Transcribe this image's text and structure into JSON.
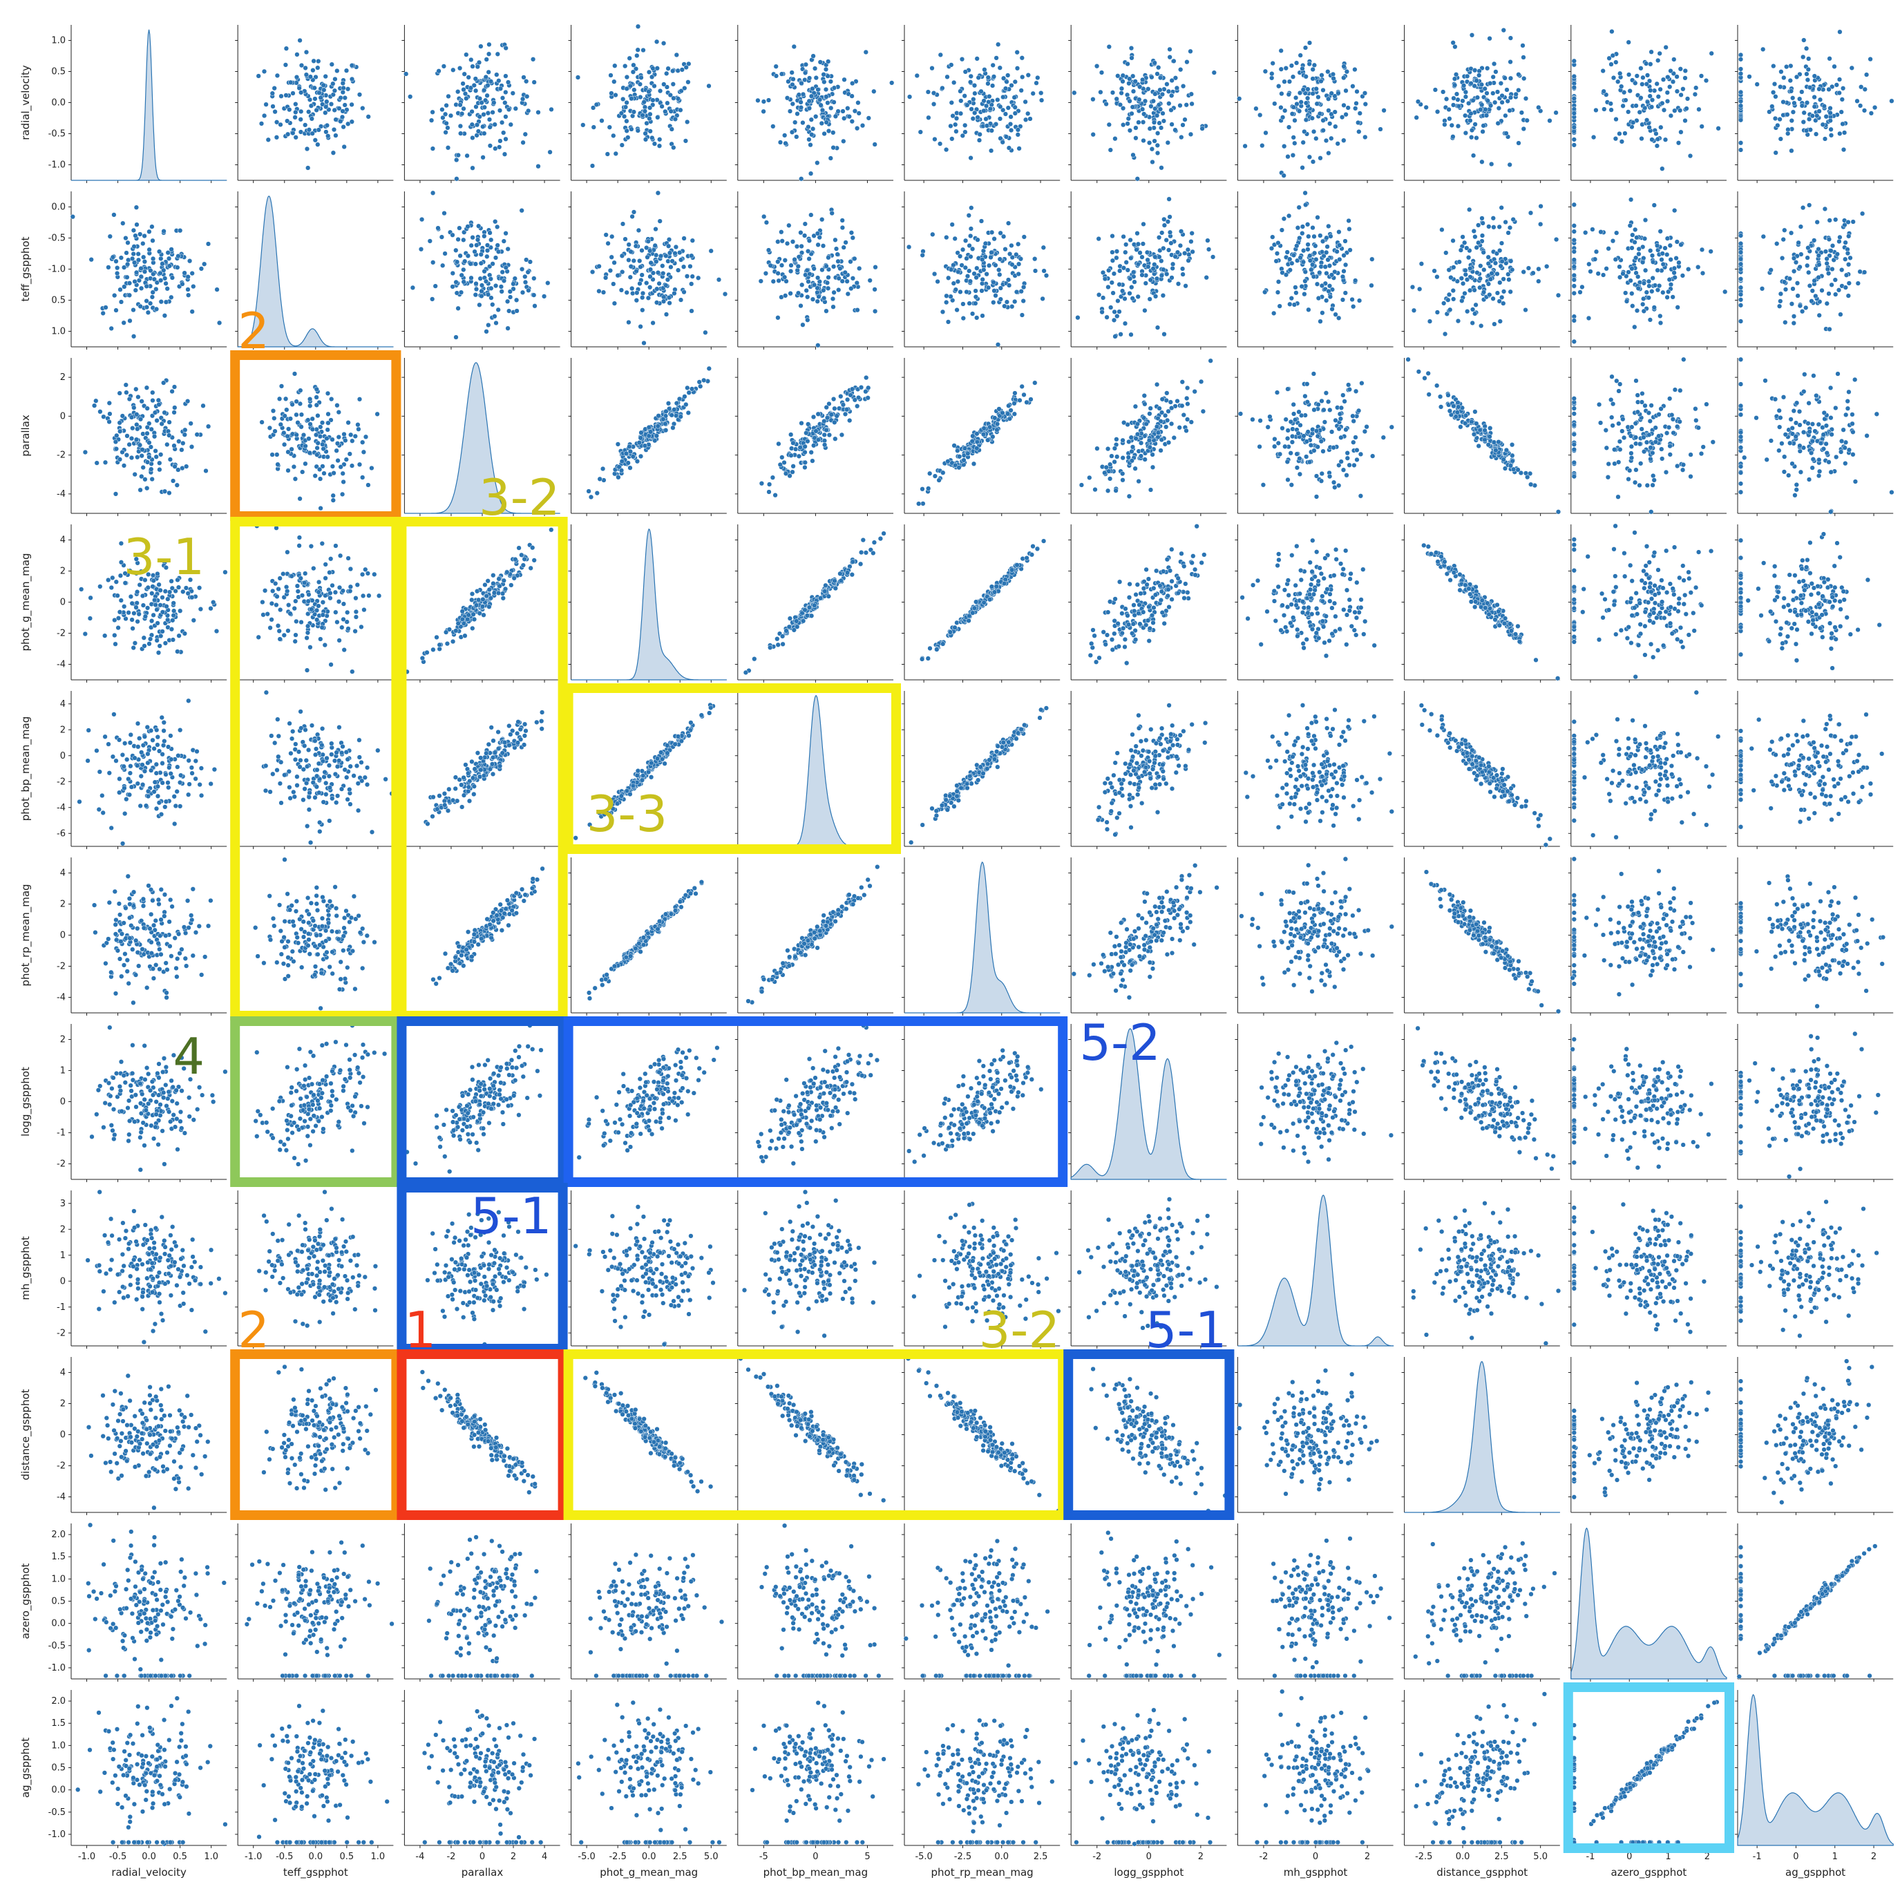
{
  "chart_data": {
    "type": "scatter",
    "figure": "pair plot (scatter matrix) with KDE on diagonal",
    "variables": [
      "radial_velocity",
      "teff_gspphot",
      "parallax",
      "phot_g_mean_mag",
      "phot_bp_mean_mag",
      "phot_rp_mean_mag",
      "logg_gspphot",
      "mh_gspphot",
      "distance_gspphot",
      "azero_gspphot",
      "ag_gspphot"
    ],
    "x_ticks": [
      [
        "-1.0",
        "-0.5",
        "0.0",
        "0.5",
        "1.0"
      ],
      [
        "-1.0",
        "-0.5",
        "0.0",
        "0.5",
        "1.0"
      ],
      [
        "-4",
        "-2",
        "0",
        "2",
        "4"
      ],
      [
        "-5.0",
        "-2.5",
        "0.0",
        "2.5",
        "5.0"
      ],
      [
        "-5",
        "0",
        "5"
      ],
      [
        "-5.0",
        "-2.5",
        "0.0",
        "2.5"
      ],
      [
        "-2",
        "0",
        "2"
      ],
      [
        "-2",
        "0",
        "2"
      ],
      [
        "-2.5",
        "0.0",
        "2.5",
        "5.0"
      ],
      [
        "-1",
        "0",
        "1",
        "2"
      ],
      [
        "-1",
        "0",
        "1",
        "2"
      ]
    ],
    "y_ticks": [
      [
        "1.0",
        "0.5",
        "0.0",
        "-0.5",
        "-1.0"
      ],
      [
        "0.0",
        "-0.5",
        "-1.0",
        "0.5",
        "1.0"
      ],
      [
        "2",
        "0",
        "-2",
        "-4"
      ],
      [
        "4",
        "2",
        "0",
        "-2",
        "-4"
      ],
      [
        "4",
        "2",
        "0",
        "-2",
        "-4",
        "-6"
      ],
      [
        "4",
        "2",
        "0",
        "-2",
        "-4"
      ],
      [
        "2",
        "1",
        "0",
        "-1",
        "-2"
      ],
      [
        "3",
        "2",
        "1",
        "0",
        "-1",
        "-2"
      ],
      [
        "4",
        "2",
        "0",
        "-2",
        "-4"
      ],
      [
        "2.0",
        "1.5",
        "1.0",
        "0.5",
        "0.0",
        "-0.5",
        "-1.0"
      ],
      [
        "2.0",
        "1.5",
        "1.0",
        "0.5",
        "0.0",
        "-0.5",
        "-1.0"
      ]
    ],
    "x_ranges": [
      [
        -1.05,
        1.15
      ],
      [
        -1.1,
        1.1
      ],
      [
        -5,
        4.5
      ],
      [
        -5.2,
        5.2
      ],
      [
        -8,
        7.5
      ],
      [
        -5.2,
        4.5
      ],
      [
        -3,
        2.5
      ],
      [
        -2.5,
        3.5
      ],
      [
        -4.5,
        5.5
      ],
      [
        -1.6,
        2.5
      ],
      [
        -1.5,
        2.4
      ]
    ],
    "y_ranges": [
      [
        -1.1,
        1.1
      ],
      [
        -1.1,
        1.1
      ],
      [
        -4.3,
        3.5
      ],
      [
        -5,
        4.8
      ],
      [
        -6.2,
        5.3
      ],
      [
        -4.5,
        4.2
      ],
      [
        -2.9,
        2.2
      ],
      [
        -2.2,
        3.0
      ],
      [
        -4.1,
        5.0
      ],
      [
        -1.25,
        2.2
      ],
      [
        -1.25,
        2.2
      ]
    ],
    "diagonal": "kde",
    "point_color": "#2a74b3",
    "grid": false,
    "annotations": [
      {
        "label": "2",
        "color": "#f5900f",
        "row": 2,
        "col": 1,
        "rows": 1,
        "cols": 1,
        "label_pos": "above-left"
      },
      {
        "label": "3-2",
        "color": "#f4ee12",
        "label_color": "#c8c01e",
        "row": 3,
        "col": 2,
        "rows": 3,
        "cols": 1,
        "label_pos": "above-right"
      },
      {
        "label": "3-1",
        "color": "#f4ee12",
        "label_color": "#c8c01e",
        "row": 3,
        "col": 1,
        "rows": 3,
        "cols": 1,
        "label_pos": "left"
      },
      {
        "label": "3-3",
        "color": "#f4ee12",
        "label_color": "#c8c01e",
        "row": 4,
        "col": 3,
        "rows": 1,
        "cols": 2,
        "label_pos": "inside"
      },
      {
        "label": "4",
        "color": "#8ec85a",
        "label_color": "#4d7024",
        "row": 6,
        "col": 1,
        "rows": 1,
        "cols": 1,
        "label_pos": "left"
      },
      {
        "label": "",
        "color": "#1a5fd6",
        "row": 6,
        "col": 2,
        "rows": 1,
        "cols": 1,
        "label_pos": "none"
      },
      {
        "label": "5-2",
        "color": "#1f62f0",
        "label_color": "#1f4fd6",
        "row": 6,
        "col": 3,
        "rows": 1,
        "cols": 3,
        "label_pos": "right"
      },
      {
        "label": "5-1",
        "color": "#1a5fd6",
        "label_color": "#1f4fd6",
        "row": 7,
        "col": 2,
        "rows": 1,
        "cols": 1,
        "label_pos": "inside-top"
      },
      {
        "label": "2",
        "color": "#f5900f",
        "row": 8,
        "col": 1,
        "rows": 1,
        "cols": 1,
        "label_pos": "above-left"
      },
      {
        "label": "1",
        "color": "#f2361a",
        "row": 8,
        "col": 2,
        "rows": 1,
        "cols": 1,
        "label_pos": "above-left"
      },
      {
        "label": "3-2",
        "color": "#f4ee12",
        "label_color": "#c8c01e",
        "row": 8,
        "col": 3,
        "rows": 1,
        "cols": 3,
        "label_pos": "above-right"
      },
      {
        "label": "5-1",
        "color": "#1a5fd6",
        "label_color": "#1f4fd6",
        "row": 8,
        "col": 6,
        "rows": 1,
        "cols": 1,
        "label_pos": "above-right"
      },
      {
        "label": "",
        "color": "#5cd2f5",
        "row": 10,
        "col": 9,
        "rows": 1,
        "cols": 1,
        "label_pos": "none"
      }
    ]
  }
}
